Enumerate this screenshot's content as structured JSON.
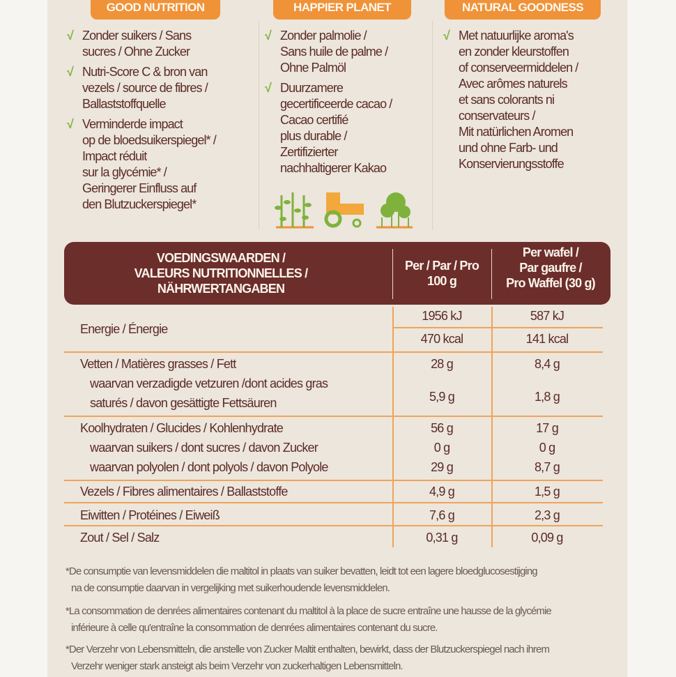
{
  "badges": [
    "GOOD NUTRITION",
    "HAPPIER PLANET",
    "NATURAL GOODNESS"
  ],
  "columns": [
    {
      "items": [
        [
          "Zonder suikers / Sans",
          "sucres / Ohne Zucker"
        ],
        [
          "Nutri-Score C & bron van",
          "vezels / source de fibres /",
          "Ballaststoffquelle"
        ],
        [
          "Verminderde impact",
          "op de bloedsuikerspiegel* /",
          "Impact réduit",
          "sur la glycémie* /",
          "Geringerer Einfluss auf",
          "den Blutzuckerspiegel*"
        ]
      ]
    },
    {
      "items": [
        [
          "Zonder palmolie /",
          "Sans huile de palme /",
          "Ohne Palmöl"
        ],
        [
          "Duurzamere",
          "gecertificeerde cacao /",
          "Cacao certifié",
          "plus durable /",
          "Zertifizierter",
          "nachhaltigerer Kakao"
        ]
      ]
    },
    {
      "items": [
        [
          "Met natuurlijke aroma's",
          "en zonder kleurstoffen",
          "of conserveermiddelen /",
          "Avec arômes naturels",
          "et sans colorants ni",
          "conservateurs /",
          "Mit natürlichen Aromen",
          "und ohne Farb- und",
          "Konservierungsstoffe"
        ]
      ]
    }
  ],
  "icons": [
    "plants-icon",
    "tractor-icon",
    "trees-icon"
  ],
  "colors": {
    "brown": "#6b2e2b",
    "orange": "#ef9238",
    "green": "#7fb23c",
    "background": "#ece6dc"
  },
  "table": {
    "header": {
      "label": [
        "VOEDINGSWAARDEN /",
        "VALEURS NUTRITIONNELLES /",
        "NÄHRWERTANGABEN"
      ],
      "per100": [
        "Per / Par / Pro",
        "100 g"
      ],
      "perWafel": [
        "Per wafel /",
        "Par gaufre /",
        "Pro Waffel (30 g)"
      ]
    },
    "energy": {
      "label": "Energie / Énergie",
      "kj": [
        "1956 kJ",
        "587 kJ"
      ],
      "kcal": [
        "470 kcal",
        "141 kcal"
      ]
    },
    "fat": {
      "label": "Vetten / Matières grasses / Fett",
      "v": [
        "28 g",
        "8,4 g"
      ],
      "sat_label": [
        "waarvan verzadigde vetzuren /dont acides gras",
        "saturés / davon gesättigte Fettsäuren"
      ],
      "sat": [
        "5,9 g",
        "1,8 g"
      ]
    },
    "carbs": {
      "label": "Koolhydraten / Glucides / Kohlenhydrate",
      "v": [
        "56 g",
        "17 g"
      ],
      "sugar_label": "waarvan suikers / dont sucres / davon Zucker",
      "sugar": [
        "0 g",
        "0 g"
      ],
      "polyol_label": "waarvan polyolen / dont polyols / davon Polyole",
      "polyol": [
        "29 g",
        "8,7 g"
      ]
    },
    "fibre": {
      "label": "Vezels / Fibres alimentaires / Ballaststoffe",
      "v": [
        "4,9 g",
        "1,5 g"
      ]
    },
    "protein": {
      "label": "Eiwitten / Protéines / Eiweiß",
      "v": [
        "7,6 g",
        "2,3 g"
      ]
    },
    "salt": {
      "label": "Zout / Sel / Salz",
      "v": [
        "0,31 g",
        "0,09 g"
      ]
    }
  },
  "footnotes": [
    [
      "*De consumptie van levensmiddelen die maltitol in plaats van suiker bevatten, leidt tot een lagere bloedglucosestijging",
      "na de consumptie daarvan in vergelijking met suikerhoudende levensmiddelen."
    ],
    [
      "*La consommation de denrées alimentaires contenant du maltitol à la place de sucre entraîne une hausse de la glycémie",
      "inférieure à celle qu'entraîne la consommation de denrées alimentaires contenant du sucre."
    ],
    [
      "*Der Verzehr von Lebensmitteln, die anstelle von Zucker Maltit enthalten, bewirkt, dass der Blutzuckerspiegel nach ihrem",
      "Verzehr weniger stark ansteigt als beim Verzehr von zuckerhaltigen Lebensmitteln."
    ]
  ]
}
